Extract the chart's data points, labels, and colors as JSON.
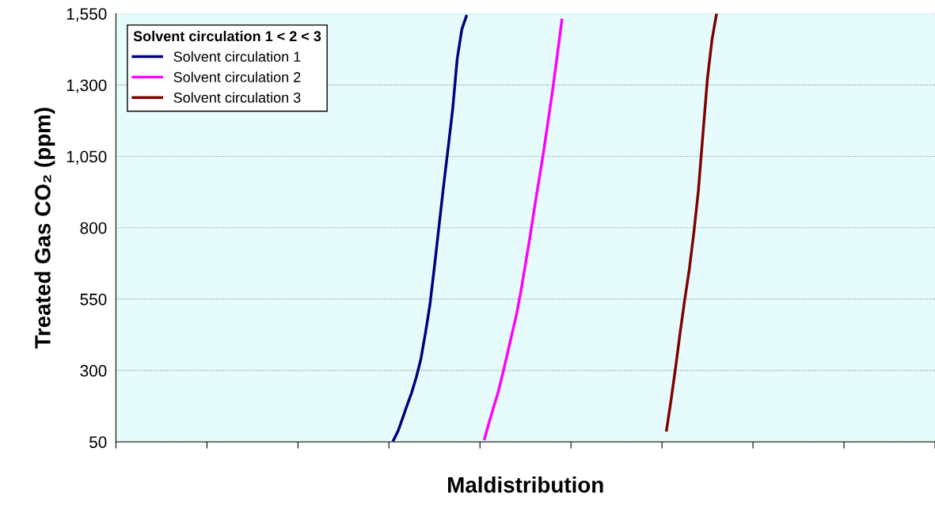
{
  "chart_data": {
    "type": "line",
    "xlabel": "Maldistribution",
    "ylabel": "Treated Gas CO₂ (ppm)",
    "legend_title": "Solvent circulation 1 < 2 < 3",
    "categories": [
      null,
      null,
      null,
      null,
      null,
      null,
      null,
      null,
      null,
      null,
      null,
      null,
      null,
      null,
      null,
      null,
      null,
      null,
      null,
      null,
      null,
      null,
      null,
      null,
      null,
      null,
      null,
      null,
      null,
      null,
      null,
      null,
      null,
      null,
      null,
      null,
      null,
      null,
      null,
      null,
      null,
      null,
      null,
      null,
      null,
      null,
      null,
      null,
      null,
      null,
      null,
      null,
      null,
      null,
      null,
      null,
      null,
      null,
      null,
      null,
      null,
      null,
      null,
      null,
      null,
      null,
      null,
      null,
      null,
      null,
      null,
      null,
      null,
      null,
      null,
      null,
      null,
      null,
      null,
      null,
      null,
      null,
      null,
      null,
      null,
      null,
      null,
      null,
      null,
      null,
      null,
      null,
      null,
      null,
      null,
      null,
      null,
      null,
      null,
      null,
      null,
      null,
      null,
      null,
      null,
      null,
      null,
      null,
      null,
      null,
      null,
      null,
      null,
      null,
      null,
      null,
      null,
      null,
      null,
      null,
      null,
      null,
      null,
      null,
      null,
      null,
      null,
      null,
      null,
      null,
      null,
      null,
      null,
      null,
      null,
      null,
      null,
      null,
      null,
      null,
      null,
      null,
      null,
      null,
      null,
      null,
      null,
      null,
      null,
      null,
      null,
      null,
      null,
      null,
      null,
      null,
      null,
      null,
      null,
      null,
      null,
      null,
      null,
      null,
      null,
      null,
      null,
      null,
      null,
      null,
      null,
      null,
      null,
      null,
      null,
      null,
      null,
      null,
      null,
      null,
      null
    ],
    "ylim": [
      50,
      1550
    ],
    "yticks": [
      {
        "value": 50,
        "label": "50"
      },
      {
        "value": 300,
        "label": "300"
      },
      {
        "value": 550,
        "label": "550"
      },
      {
        "value": 800,
        "label": "800"
      },
      {
        "value": 1050,
        "label": "1,050"
      },
      {
        "value": 1300,
        "label": "1,300"
      },
      {
        "value": 1550,
        "label": "1,550"
      }
    ],
    "tick_labels": "y",
    "grid": "y",
    "legend": "top left",
    "marker": "none",
    "line_style": "solid",
    "series": [
      {
        "name": "Solvent circulation 1",
        "color": "#000080",
        "values": [
          null,
          null,
          null,
          null,
          null,
          null,
          null,
          null,
          null,
          null,
          null,
          null,
          null,
          null,
          null,
          null,
          null,
          null,
          null,
          null,
          null,
          null,
          null,
          null,
          null,
          null,
          null,
          null,
          null,
          null,
          null,
          null,
          null,
          null,
          null,
          null,
          null,
          null,
          null,
          null,
          null,
          null,
          null,
          null,
          null,
          null,
          null,
          null,
          null,
          null,
          null,
          null,
          null,
          null,
          null,
          null,
          null,
          null,
          null,
          null,
          null,
          56,
          88,
          133,
          179,
          223,
          276,
          339,
          430,
          530,
          665,
          806,
          946,
          1079,
          1215,
          1392,
          1494,
          1541,
          null,
          null,
          null,
          null,
          null,
          null,
          null,
          null,
          null,
          null,
          null,
          null,
          null,
          null,
          null,
          null,
          null,
          null,
          null,
          null,
          null,
          null,
          null,
          null,
          null,
          null,
          null,
          null,
          null,
          null,
          null,
          null,
          null,
          null,
          null,
          null,
          null,
          null,
          null,
          null,
          null,
          null,
          null,
          null,
          null,
          null,
          null,
          null,
          null,
          null,
          null,
          null,
          null,
          null,
          null,
          null,
          null,
          null,
          null,
          null,
          null,
          null,
          null,
          null,
          null,
          null,
          null,
          null,
          null,
          null,
          null,
          null,
          null,
          null,
          null,
          null,
          null,
          null,
          null,
          null,
          null,
          null,
          null,
          null,
          null,
          null,
          null,
          null,
          null,
          null,
          null,
          null,
          null,
          null,
          null,
          null,
          null,
          null,
          null,
          null,
          null,
          null,
          null
        ]
      },
      {
        "name": "Solvent circulation 2",
        "color": "#ff00ff",
        "values": [
          null,
          null,
          null,
          null,
          null,
          null,
          null,
          null,
          null,
          null,
          null,
          null,
          null,
          null,
          null,
          null,
          null,
          null,
          null,
          null,
          null,
          null,
          null,
          null,
          null,
          null,
          null,
          null,
          null,
          null,
          null,
          null,
          null,
          null,
          null,
          null,
          null,
          null,
          null,
          null,
          null,
          null,
          null,
          null,
          null,
          null,
          null,
          null,
          null,
          null,
          null,
          null,
          null,
          null,
          null,
          null,
          null,
          null,
          null,
          null,
          null,
          null,
          null,
          null,
          null,
          null,
          null,
          null,
          null,
          null,
          null,
          null,
          null,
          null,
          null,
          null,
          null,
          null,
          null,
          null,
          null,
          61,
          118,
          172,
          224,
          289,
          357,
          426,
          494,
          578,
          673,
          769,
          872,
          970,
          1068,
          1177,
          1286,
          1406,
          1528,
          null,
          null,
          null,
          null,
          null,
          null,
          null,
          null,
          null,
          null,
          null,
          null,
          null,
          null,
          null,
          null,
          null,
          null,
          null,
          null,
          null,
          null,
          null,
          null,
          null,
          null,
          null,
          null,
          null,
          null,
          null,
          null,
          null,
          null,
          null,
          null,
          null,
          null,
          null,
          null,
          null,
          null,
          null,
          null,
          null,
          null,
          null,
          null,
          null,
          null,
          null,
          null,
          null,
          null,
          null,
          null,
          null,
          null,
          null,
          null,
          null,
          null,
          null,
          null,
          null,
          null,
          null,
          null,
          null,
          null,
          null,
          null,
          null,
          null,
          null,
          null,
          null,
          null,
          null,
          null,
          null,
          null
        ]
      },
      {
        "name": "Solvent circulation 3",
        "color": "#800000",
        "values": [
          null,
          null,
          null,
          null,
          null,
          null,
          null,
          null,
          null,
          null,
          null,
          null,
          null,
          null,
          null,
          null,
          null,
          null,
          null,
          null,
          null,
          null,
          null,
          null,
          null,
          null,
          null,
          null,
          null,
          null,
          null,
          null,
          null,
          null,
          null,
          null,
          null,
          null,
          null,
          null,
          null,
          null,
          null,
          null,
          null,
          null,
          null,
          null,
          null,
          null,
          null,
          null,
          null,
          null,
          null,
          null,
          null,
          null,
          null,
          null,
          null,
          null,
          null,
          null,
          null,
          null,
          null,
          null,
          null,
          null,
          null,
          null,
          null,
          null,
          null,
          null,
          null,
          null,
          null,
          null,
          null,
          null,
          null,
          null,
          null,
          null,
          null,
          null,
          null,
          null,
          null,
          null,
          null,
          null,
          null,
          null,
          null,
          null,
          null,
          null,
          null,
          null,
          null,
          null,
          null,
          null,
          null,
          null,
          null,
          null,
          null,
          null,
          null,
          null,
          null,
          null,
          null,
          null,
          null,
          null,
          null,
          91,
          197,
          311,
          434,
          548,
          654,
          783,
          930,
          1129,
          1324,
          1460,
          1550,
          null,
          null,
          null,
          null,
          null,
          null,
          null,
          null,
          null,
          null,
          null,
          null,
          null,
          null,
          null,
          null,
          null,
          null,
          null,
          null,
          null,
          null,
          null,
          null,
          null,
          null,
          null,
          null,
          null,
          null,
          null,
          null,
          null,
          null,
          null,
          null,
          null,
          null,
          null,
          null,
          null,
          null,
          null,
          null,
          null,
          null,
          null,
          null
        ]
      }
    ]
  }
}
